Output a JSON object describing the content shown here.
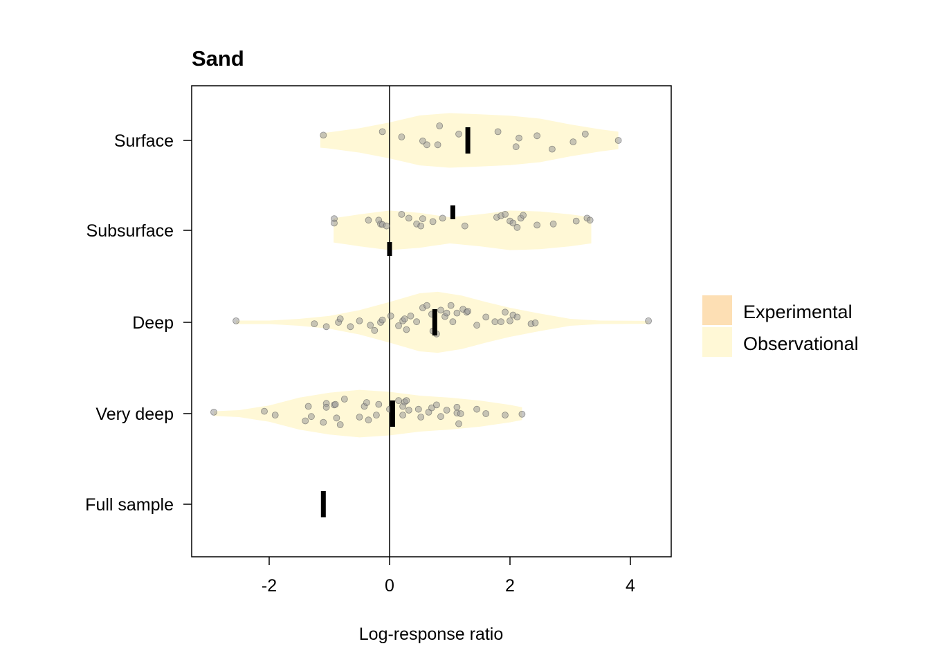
{
  "chart_data": {
    "type": "violin",
    "title": "Sand",
    "xlabel": "Log-response ratio",
    "ylabel": "",
    "xlim": [
      -3.3,
      4.7
    ],
    "x_ticks": [
      -2,
      0,
      2,
      4
    ],
    "x_tick_labels": [
      "-2",
      "0",
      "2",
      "4"
    ],
    "reference_line_x": 0,
    "categories": [
      "Surface",
      "Subsurface",
      "Deep",
      "Very deep",
      "Full sample"
    ],
    "legend": {
      "position": "right",
      "items": [
        {
          "label": "Experimental",
          "color": "#FDDFB4"
        },
        {
          "label": "Observational",
          "color": "#FFF8D6"
        }
      ]
    },
    "point_color": "#999999",
    "violins": [
      {
        "category": "Surface",
        "group": "Observational",
        "xmin": -1.15,
        "xmax": 3.8,
        "density": [
          [
            -1.15,
            0.25
          ],
          [
            -1.0,
            0.28
          ],
          [
            -0.5,
            0.42
          ],
          [
            0.0,
            0.62
          ],
          [
            0.5,
            0.86
          ],
          [
            1.0,
            0.94
          ],
          [
            1.5,
            0.9
          ],
          [
            2.0,
            0.85
          ],
          [
            2.5,
            0.75
          ],
          [
            3.0,
            0.55
          ],
          [
            3.5,
            0.38
          ],
          [
            3.8,
            0.3
          ]
        ],
        "points": [
          [
            -1.1,
            0.18
          ],
          [
            -0.12,
            0.3
          ],
          [
            0.2,
            0.12
          ],
          [
            0.55,
            -0.02
          ],
          [
            0.62,
            -0.15
          ],
          [
            0.8,
            -0.15
          ],
          [
            0.83,
            0.5
          ],
          [
            1.15,
            0.22
          ],
          [
            1.8,
            0.3
          ],
          [
            2.1,
            -0.22
          ],
          [
            2.15,
            0.08
          ],
          [
            2.45,
            0.16
          ],
          [
            2.7,
            -0.3
          ],
          [
            3.05,
            -0.05
          ],
          [
            3.25,
            0.22
          ],
          [
            3.8,
            0.0
          ]
        ],
        "median": 1.3,
        "ci": [
          0,
          0
        ]
      },
      {
        "category": "Subsurface",
        "group": "Observational",
        "xmin": -0.93,
        "xmax": 3.35,
        "density": [
          [
            -0.93,
            0.42
          ],
          [
            -0.5,
            0.55
          ],
          [
            0.0,
            0.68
          ],
          [
            0.5,
            0.6
          ],
          [
            1.0,
            0.45
          ],
          [
            1.5,
            0.55
          ],
          [
            2.0,
            0.68
          ],
          [
            2.5,
            0.65
          ],
          [
            3.0,
            0.55
          ],
          [
            3.35,
            0.45
          ]
        ],
        "points": [
          [
            -0.92,
            0.4
          ],
          [
            -0.92,
            0.25
          ],
          [
            -0.35,
            0.35
          ],
          [
            -0.18,
            0.35
          ],
          [
            -0.15,
            0.22
          ],
          [
            -0.12,
            0.2
          ],
          [
            -0.05,
            0.15
          ],
          [
            0.2,
            0.55
          ],
          [
            0.32,
            0.42
          ],
          [
            0.45,
            0.22
          ],
          [
            0.52,
            0.15
          ],
          [
            0.55,
            0.4
          ],
          [
            0.72,
            0.3
          ],
          [
            0.88,
            0.42
          ],
          [
            1.25,
            0.15
          ],
          [
            1.78,
            0.45
          ],
          [
            1.85,
            0.5
          ],
          [
            1.92,
            0.55
          ],
          [
            2.0,
            0.32
          ],
          [
            2.05,
            0.25
          ],
          [
            2.12,
            0.1
          ],
          [
            2.18,
            0.42
          ],
          [
            2.22,
            0.52
          ],
          [
            2.45,
            0.18
          ],
          [
            2.72,
            0.22
          ],
          [
            3.1,
            0.32
          ],
          [
            3.28,
            0.42
          ],
          [
            3.33,
            0.35
          ]
        ],
        "median": 1.05,
        "ci": [
          0,
          0
        ],
        "secondary_median": 0.0
      },
      {
        "category": "Deep",
        "group": "Observational",
        "xmin": -2.55,
        "xmax": 4.3,
        "density": [
          [
            -2.55,
            0.06
          ],
          [
            -2.0,
            0.06
          ],
          [
            -1.5,
            0.12
          ],
          [
            -1.0,
            0.22
          ],
          [
            -0.5,
            0.42
          ],
          [
            0.0,
            0.7
          ],
          [
            0.5,
            1.0
          ],
          [
            0.8,
            1.05
          ],
          [
            1.2,
            0.92
          ],
          [
            1.6,
            0.7
          ],
          [
            2.0,
            0.5
          ],
          [
            2.5,
            0.3
          ],
          [
            3.0,
            0.12
          ],
          [
            3.5,
            0.06
          ],
          [
            4.3,
            0.05
          ]
        ],
        "points": [
          [
            -2.55,
            0.05
          ],
          [
            -1.25,
            -0.05
          ],
          [
            -1.05,
            -0.15
          ],
          [
            -0.85,
            0.0
          ],
          [
            -0.82,
            0.12
          ],
          [
            -0.65,
            -0.15
          ],
          [
            -0.5,
            0.05
          ],
          [
            -0.32,
            -0.1
          ],
          [
            -0.25,
            -0.28
          ],
          [
            -0.15,
            0.0
          ],
          [
            -0.12,
            0.08
          ],
          [
            0.02,
            0.22
          ],
          [
            0.15,
            -0.12
          ],
          [
            0.22,
            0.05
          ],
          [
            0.25,
            0.12
          ],
          [
            0.28,
            -0.25
          ],
          [
            0.35,
            0.22
          ],
          [
            0.45,
            0.02
          ],
          [
            0.55,
            0.5
          ],
          [
            0.62,
            0.58
          ],
          [
            0.7,
            0.28
          ],
          [
            0.72,
            -0.3
          ],
          [
            0.78,
            -0.4
          ],
          [
            0.85,
            0.42
          ],
          [
            0.92,
            0.2
          ],
          [
            0.95,
            0.32
          ],
          [
            1.02,
            0.58
          ],
          [
            1.05,
            0.02
          ],
          [
            1.12,
            0.32
          ],
          [
            1.22,
            0.45
          ],
          [
            1.28,
            0.35
          ],
          [
            1.3,
            0.38
          ],
          [
            1.45,
            -0.1
          ],
          [
            1.6,
            0.18
          ],
          [
            1.75,
            0.02
          ],
          [
            1.85,
            0.02
          ],
          [
            1.92,
            0.35
          ],
          [
            2.0,
            0.05
          ],
          [
            2.05,
            0.25
          ],
          [
            2.12,
            0.18
          ],
          [
            2.35,
            -0.05
          ],
          [
            2.42,
            -0.02
          ],
          [
            4.3,
            0.05
          ]
        ],
        "median": 0.75,
        "ci": [
          0,
          0
        ]
      },
      {
        "category": "Very deep",
        "group": "Observational",
        "xmin": -2.92,
        "xmax": 2.2,
        "density": [
          [
            -2.92,
            0.08
          ],
          [
            -2.5,
            0.12
          ],
          [
            -2.0,
            0.28
          ],
          [
            -1.5,
            0.55
          ],
          [
            -1.0,
            0.72
          ],
          [
            -0.5,
            0.82
          ],
          [
            0.0,
            0.75
          ],
          [
            0.5,
            0.62
          ],
          [
            1.0,
            0.55
          ],
          [
            1.5,
            0.45
          ],
          [
            2.0,
            0.3
          ],
          [
            2.2,
            0.22
          ]
        ],
        "points": [
          [
            -2.92,
            0.05
          ],
          [
            -2.08,
            0.08
          ],
          [
            -1.9,
            -0.05
          ],
          [
            -1.4,
            -0.25
          ],
          [
            -1.35,
            0.25
          ],
          [
            -1.3,
            -0.1
          ],
          [
            -1.1,
            -0.3
          ],
          [
            -1.05,
            0.35
          ],
          [
            -1.05,
            0.22
          ],
          [
            -0.92,
            0.3
          ],
          [
            -0.9,
            0.32
          ],
          [
            -0.88,
            -0.15
          ],
          [
            -0.82,
            -0.38
          ],
          [
            -0.75,
            0.5
          ],
          [
            -0.5,
            -0.12
          ],
          [
            -0.42,
            0.25
          ],
          [
            -0.38,
            0.38
          ],
          [
            -0.35,
            -0.22
          ],
          [
            -0.22,
            -0.05
          ],
          [
            -0.18,
            0.32
          ],
          [
            0.0,
            0.15
          ],
          [
            0.15,
            0.45
          ],
          [
            0.22,
            0.25
          ],
          [
            0.22,
            -0.05
          ],
          [
            0.25,
            0.4
          ],
          [
            0.28,
            0.45
          ],
          [
            0.32,
            0.12
          ],
          [
            0.48,
            0.15
          ],
          [
            0.52,
            -0.12
          ],
          [
            0.65,
            0.05
          ],
          [
            0.7,
            0.2
          ],
          [
            0.78,
            0.3
          ],
          [
            0.85,
            -0.1
          ],
          [
            0.95,
            0.12
          ],
          [
            1.12,
            0.22
          ],
          [
            1.12,
            0.02
          ],
          [
            1.15,
            -0.35
          ],
          [
            1.18,
            0.0
          ],
          [
            1.45,
            0.15
          ],
          [
            1.6,
            0.0
          ],
          [
            1.92,
            -0.05
          ],
          [
            2.2,
            -0.02
          ]
        ],
        "median": 0.05,
        "ci": [
          0,
          0
        ]
      },
      {
        "category": "Full sample",
        "group": "Observational",
        "points": [],
        "median": -1.1,
        "ci": [
          0,
          0
        ]
      }
    ]
  }
}
